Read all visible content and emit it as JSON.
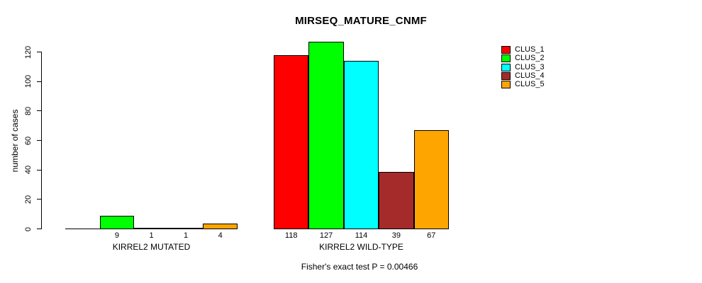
{
  "title": "MIRSEQ_MATURE_CNMF",
  "footnote": "Fisher's exact test P = 0.00466",
  "legend": {
    "position": "top-right",
    "items": [
      {
        "label": "CLUS_1",
        "color": "#FF0000"
      },
      {
        "label": "CLUS_2",
        "color": "#00FF00"
      },
      {
        "label": "CLUS_3",
        "color": "#00FFFF"
      },
      {
        "label": "CLUS_4",
        "color": "#A52A2A"
      },
      {
        "label": "CLUS_5",
        "color": "#FFA500"
      }
    ]
  },
  "chart_data": {
    "type": "bar",
    "title": "MIRSEQ_MATURE_CNMF",
    "xlabel": "",
    "ylabel": "number of cases",
    "ylim": [
      0,
      120
    ],
    "yticks": [
      0,
      20,
      40,
      60,
      80,
      100,
      120
    ],
    "grid": false,
    "legend_position": "top-right",
    "clusters": [
      "CLUS_1",
      "CLUS_2",
      "CLUS_3",
      "CLUS_4",
      "CLUS_5"
    ],
    "colors": [
      "#FF0000",
      "#00FF00",
      "#00FFFF",
      "#A52A2A",
      "#FFA500"
    ],
    "groups": [
      {
        "label": "KIRREL2 MUTATED",
        "values": [
          0,
          9,
          1,
          1,
          4
        ],
        "bar_labels": [
          "",
          "9",
          "1",
          "1",
          "4"
        ]
      },
      {
        "label": "KIRREL2 WILD-TYPE",
        "values": [
          118,
          127,
          114,
          39,
          67
        ],
        "bar_labels": [
          "118",
          "127",
          "114",
          "39",
          "67"
        ]
      }
    ],
    "annotation": "Fisher's exact test P = 0.00466"
  }
}
